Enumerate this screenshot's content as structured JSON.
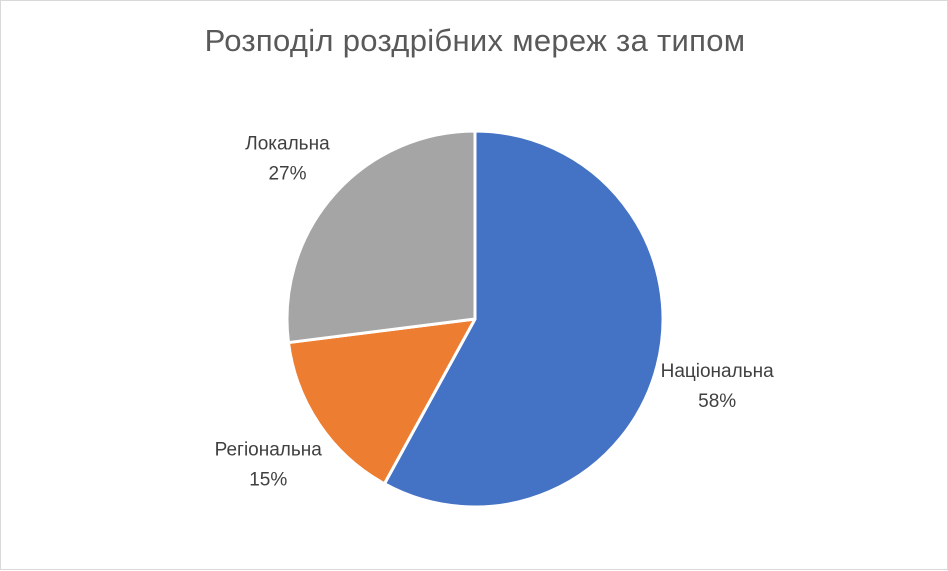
{
  "chart_data": {
    "type": "pie",
    "title": "Розподіл роздрібних мереж за типом",
    "categories": [
      "Національна",
      "Регіональна",
      "Локальна"
    ],
    "values": [
      58,
      15,
      27
    ],
    "labels": [
      "58%",
      "15%",
      "27%"
    ],
    "colors": [
      "#4472c4",
      "#ed7d31",
      "#a5a5a5"
    ],
    "label_position": "outside-end"
  }
}
